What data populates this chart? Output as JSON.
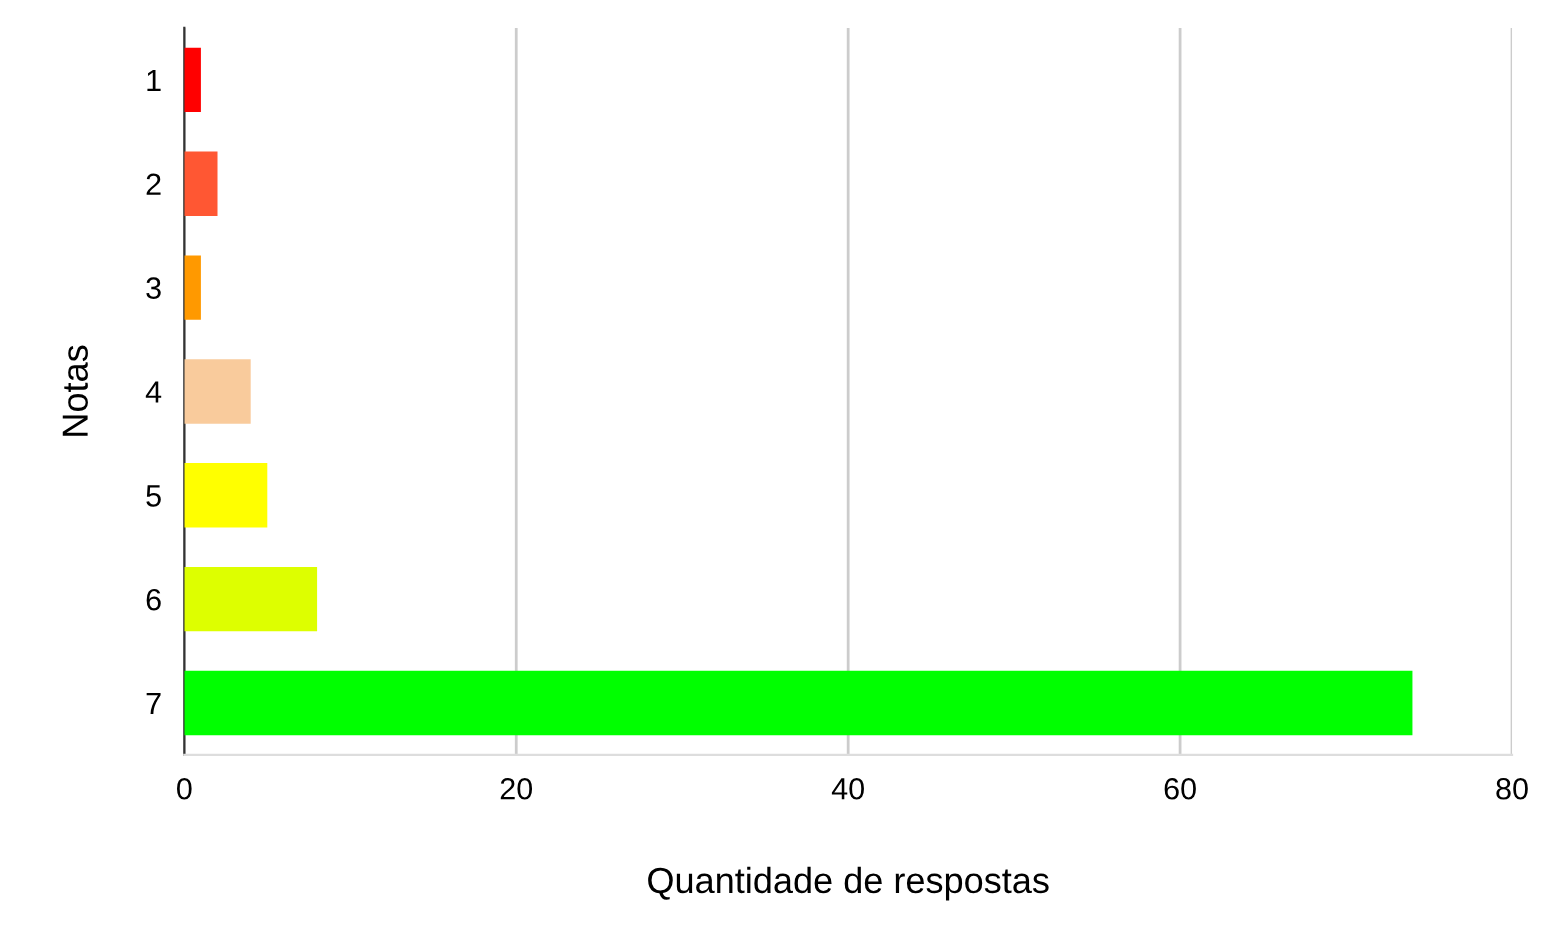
{
  "chart_data": {
    "type": "bar",
    "orientation": "horizontal",
    "xlabel": "Quantidade de respostas",
    "ylabel": "Notas",
    "categories": [
      "1",
      "2",
      "3",
      "4",
      "5",
      "6",
      "7"
    ],
    "values": [
      1,
      2,
      1,
      4,
      5,
      8,
      74
    ],
    "colors": [
      "#ff0000",
      "#ff5733",
      "#ff9900",
      "#f9cb9c",
      "#ffff00",
      "#ddff00",
      "#00ff00"
    ],
    "xlim": [
      0,
      80
    ],
    "xticks": [
      0,
      20,
      40,
      60,
      80
    ],
    "grid": "x"
  }
}
